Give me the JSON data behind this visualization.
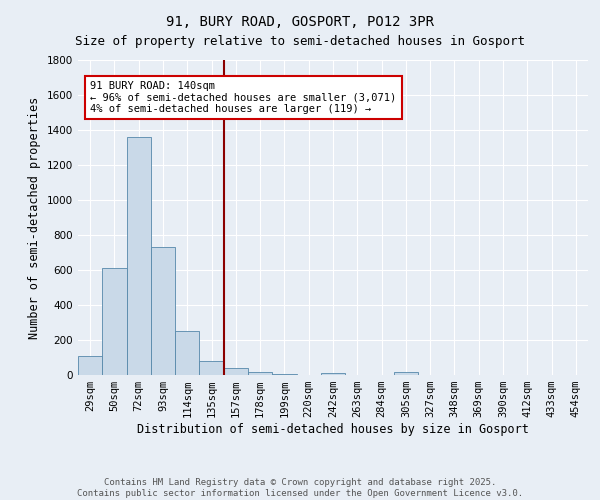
{
  "title_line1": "91, BURY ROAD, GOSPORT, PO12 3PR",
  "title_line2": "Size of property relative to semi-detached houses in Gosport",
  "xlabel": "Distribution of semi-detached houses by size in Gosport",
  "ylabel": "Number of semi-detached properties",
  "categories": [
    "29sqm",
    "50sqm",
    "72sqm",
    "93sqm",
    "114sqm",
    "135sqm",
    "157sqm",
    "178sqm",
    "199sqm",
    "220sqm",
    "242sqm",
    "263sqm",
    "284sqm",
    "305sqm",
    "327sqm",
    "348sqm",
    "369sqm",
    "390sqm",
    "412sqm",
    "433sqm",
    "454sqm"
  ],
  "values": [
    110,
    610,
    1360,
    730,
    253,
    80,
    38,
    15,
    5,
    0,
    13,
    0,
    0,
    15,
    0,
    0,
    0,
    0,
    0,
    0,
    0
  ],
  "bar_color": "#c9d9e8",
  "bar_edge_color": "#5588aa",
  "vline_x_index": 5,
  "vline_color": "#8b0000",
  "annotation_line1": "91 BURY ROAD: 140sqm",
  "annotation_line2": "← 96% of semi-detached houses are smaller (3,071)",
  "annotation_line3": "4% of semi-detached houses are larger (119) →",
  "annotation_box_facecolor": "#ffffff",
  "annotation_box_edgecolor": "#cc0000",
  "ylim": [
    0,
    1800
  ],
  "yticks": [
    0,
    200,
    400,
    600,
    800,
    1000,
    1200,
    1400,
    1600,
    1800
  ],
  "footnote_line1": "Contains HM Land Registry data © Crown copyright and database right 2025.",
  "footnote_line2": "Contains public sector information licensed under the Open Government Licence v3.0.",
  "background_color": "#e8eef5",
  "plot_background_color": "#e8eef5",
  "grid_color": "#ffffff",
  "title_fontsize": 10,
  "subtitle_fontsize": 9,
  "axis_label_fontsize": 8.5,
  "tick_fontsize": 7.5,
  "annotation_fontsize": 7.5,
  "footnote_fontsize": 6.5
}
